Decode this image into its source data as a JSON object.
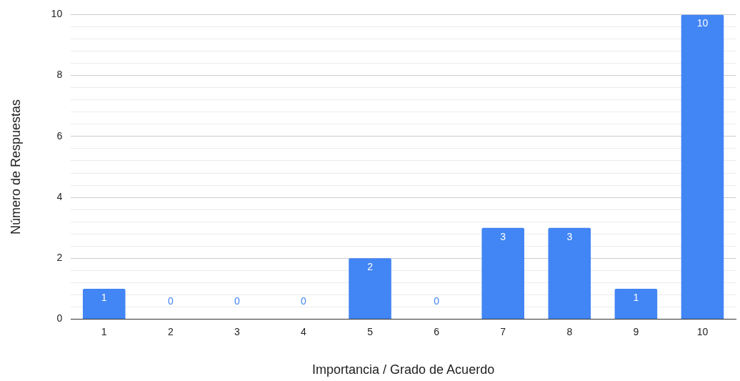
{
  "chart_data": {
    "type": "bar",
    "xlabel": "Importancia / Grado de Acuerdo",
    "ylabel": "Número de Respuestas",
    "categories": [
      "1",
      "2",
      "3",
      "4",
      "5",
      "6",
      "7",
      "8",
      "9",
      "10"
    ],
    "values": [
      1,
      0,
      0,
      0,
      2,
      0,
      3,
      3,
      1,
      10
    ],
    "color": "#4285f4",
    "ylim": [
      0,
      10
    ],
    "yticks": [
      0,
      {
        "value": 0.4,
        "label": null
      },
      {
        "value": 0.8,
        "label": null
      },
      {
        "value": 1.2,
        "label": null
      },
      {
        "value": 1.6,
        "label": null
      },
      2,
      {
        "value": 2.4,
        "label": null
      },
      {
        "value": 2.8,
        "label": null
      },
      {
        "value": 3.2,
        "label": null
      },
      {
        "value": 3.6,
        "label": null
      },
      4,
      {
        "value": 4.4,
        "label": null
      },
      {
        "value": 4.8,
        "label": null
      },
      {
        "value": 5.2,
        "label": null
      },
      {
        "value": 5.6,
        "label": null
      },
      6,
      {
        "value": 6.4,
        "label": null
      },
      {
        "value": 6.8,
        "label": null
      },
      {
        "value": 7.2,
        "label": null
      },
      {
        "value": 7.6,
        "label": null
      },
      8,
      {
        "value": 8.4,
        "label": null
      },
      {
        "value": 8.8,
        "label": null
      },
      {
        "value": 9.2,
        "label": null
      },
      {
        "value": 9.6,
        "label": null
      },
      10
    ],
    "grid": "y",
    "data_labels": true,
    "legend": false
  }
}
